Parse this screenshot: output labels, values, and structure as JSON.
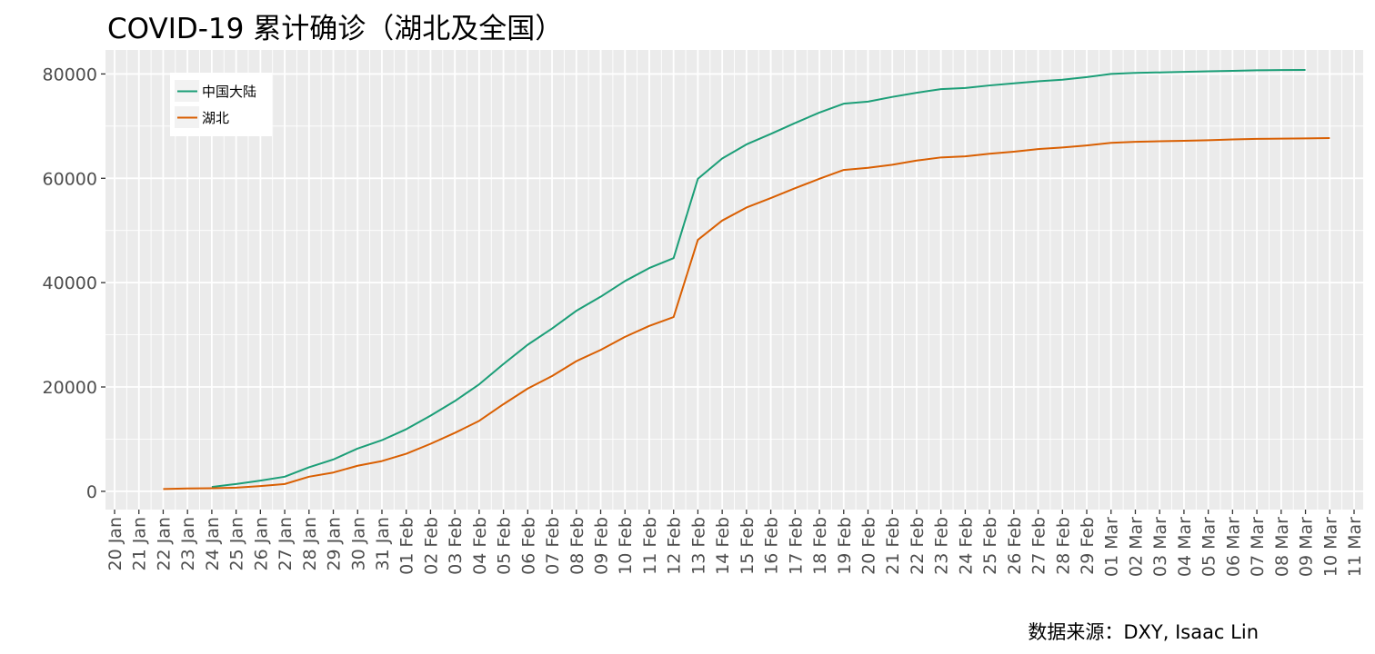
{
  "chart_data": {
    "type": "line",
    "title": "COVID-19 累计确诊（湖北及全国）",
    "caption": "数据来源：DXY, Isaac Lin",
    "xlabel": "",
    "ylabel": "",
    "x_ticks": [
      "20 Jan",
      "21 Jan",
      "22 Jan",
      "23 Jan",
      "24 Jan",
      "25 Jan",
      "26 Jan",
      "27 Jan",
      "28 Jan",
      "29 Jan",
      "30 Jan",
      "31 Jan",
      "01 Feb",
      "02 Feb",
      "03 Feb",
      "04 Feb",
      "05 Feb",
      "06 Feb",
      "07 Feb",
      "08 Feb",
      "09 Feb",
      "10 Feb",
      "11 Feb",
      "12 Feb",
      "13 Feb",
      "14 Feb",
      "15 Feb",
      "16 Feb",
      "17 Feb",
      "18 Feb",
      "19 Feb",
      "20 Feb",
      "21 Feb",
      "22 Feb",
      "23 Feb",
      "24 Feb",
      "25 Feb",
      "26 Feb",
      "27 Feb",
      "28 Feb",
      "29 Feb",
      "01 Mar",
      "02 Mar",
      "03 Mar",
      "04 Mar",
      "05 Mar",
      "06 Mar",
      "07 Mar",
      "08 Mar",
      "09 Mar",
      "10 Mar",
      "11 Mar"
    ],
    "y_ticks": [
      0,
      20000,
      40000,
      60000,
      80000
    ],
    "ylim": [
      -3500,
      84600
    ],
    "grid": true,
    "legend_position": "top-left",
    "series": [
      {
        "name": "中国大陆",
        "color": "#1b9e77",
        "start": "24 Jan",
        "values": [
          830,
          1400,
          2050,
          2800,
          4600,
          6100,
          8200,
          9800,
          11900,
          14500,
          17300,
          20500,
          24400,
          28100,
          31200,
          34600,
          37300,
          40300,
          42800,
          44700,
          59900,
          63800,
          66500,
          68500,
          70600,
          72600,
          74300,
          74700,
          75600,
          76400,
          77100,
          77300,
          77800,
          78200,
          78600,
          78900,
          79400,
          80000,
          80200,
          80300,
          80400,
          80500,
          80600,
          80700,
          80750,
          80780
        ]
      },
      {
        "name": "湖北",
        "color": "#d95f02",
        "start": "22 Jan",
        "values": [
          444,
          549,
          600,
          700,
          1000,
          1400,
          2800,
          3600,
          4900,
          5800,
          7200,
          9100,
          11200,
          13500,
          16700,
          19700,
          22100,
          24950,
          27100,
          29600,
          31700,
          33400,
          48200,
          51900,
          54400,
          56200,
          58100,
          59900,
          61600,
          62000,
          62600,
          63400,
          64000,
          64200,
          64700,
          65100,
          65600,
          65900,
          66300,
          66800,
          67000,
          67100,
          67200,
          67300,
          67450,
          67550,
          67600,
          67650,
          67700
        ]
      }
    ]
  }
}
